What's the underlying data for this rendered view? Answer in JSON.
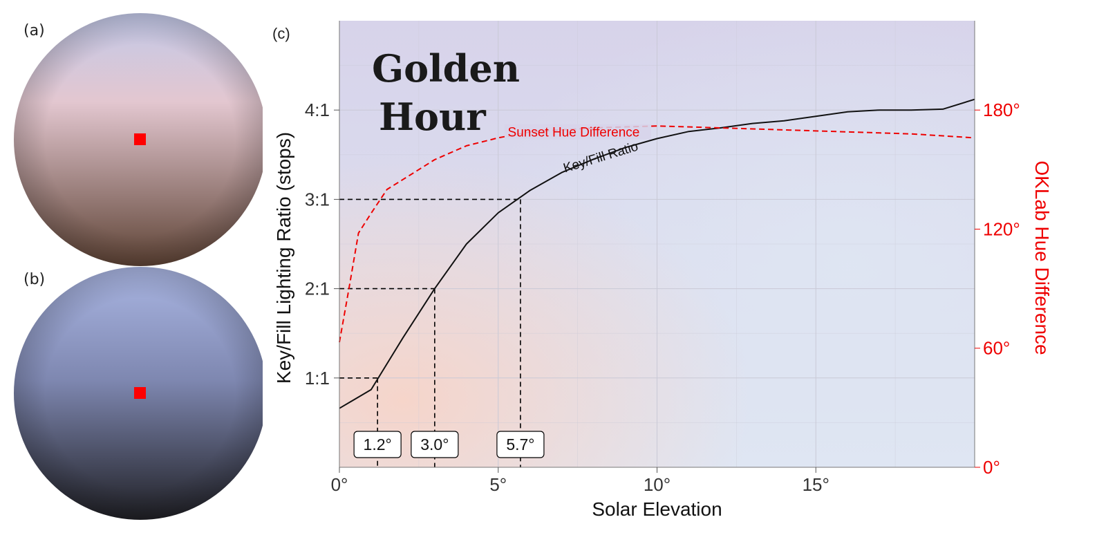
{
  "panels": {
    "a": {
      "label": "(a)"
    },
    "b": {
      "label": "(b)"
    },
    "c": {
      "label": "(c)"
    }
  },
  "spheres": {
    "a": {
      "top_color": "#c2c8e8",
      "mid_color": "#e3c7d0",
      "bottom_color": "#5e4335",
      "rim_color": "#b8a3bd",
      "marker_color": "#ff0000"
    },
    "b": {
      "top_color": "#aab6e3",
      "mid_color": "#7e87b0",
      "bottom_color": "#1f1f24",
      "rim_color": "#9aa3c6",
      "marker_color": "#ff0000"
    }
  },
  "colors": {
    "key_fill_line": "#111111",
    "hue_line": "#ee0000",
    "right_axis": "#ee0000",
    "grid": "#c9c9d6",
    "bg_top": "#d7d3ea",
    "bg_warm": "#f7d4c8",
    "bg_right": "#dfe6f3"
  },
  "chart_data": {
    "type": "line",
    "title": "Golden Hour",
    "title_lines": [
      "Golden",
      "Hour"
    ],
    "xlabel": "Solar Elevation",
    "ylabel": "Key/Fill Lighting Ratio (stops)",
    "y2label": "OKLab Hue Difference",
    "xlim": [
      0,
      20
    ],
    "ylim": [
      0,
      5
    ],
    "y2lim": [
      0,
      225
    ],
    "x_ticks": [
      0,
      5,
      10,
      15
    ],
    "x_tick_labels": [
      "0°",
      "5°",
      "10°",
      "15°"
    ],
    "y_ticks": [
      1,
      2,
      3,
      4
    ],
    "y_tick_labels": [
      "1:1",
      "2:1",
      "3:1",
      "4:1"
    ],
    "y2_ticks": [
      0,
      60,
      120,
      180
    ],
    "y2_tick_labels": [
      "0°",
      "60°",
      "120°",
      "180°"
    ],
    "series": [
      {
        "name": "Key/Fill Ratio",
        "axis": "left",
        "style": "solid",
        "label": "Key/Fill Ratio",
        "x": [
          0,
          1,
          2,
          3,
          4,
          5,
          6,
          7,
          8,
          9,
          10,
          11,
          12,
          13,
          14,
          15,
          16,
          17,
          18,
          19,
          20
        ],
        "y": [
          0.66,
          0.87,
          1.45,
          2.0,
          2.5,
          2.85,
          3.1,
          3.3,
          3.45,
          3.58,
          3.68,
          3.76,
          3.8,
          3.85,
          3.88,
          3.93,
          3.98,
          4.0,
          4.0,
          4.01,
          4.12
        ]
      },
      {
        "name": "Sunset Hue Difference",
        "axis": "right",
        "style": "dashed",
        "label": "Sunset Hue Difference",
        "x": [
          0,
          0.3,
          0.6,
          1,
          1.5,
          2,
          3,
          4,
          5,
          6,
          8,
          10,
          12,
          14,
          16,
          18,
          20
        ],
        "y": [
          63,
          90,
          118,
          128,
          140,
          145,
          155,
          162,
          166,
          169,
          171,
          172,
          171,
          170,
          169,
          168,
          166
        ]
      }
    ],
    "annotations": [
      {
        "x": 1.2,
        "y": 1.0,
        "label": "1.2°"
      },
      {
        "x": 3.0,
        "y": 2.0,
        "label": "3.0°"
      },
      {
        "x": 5.7,
        "y": 3.0,
        "label": "5.7°"
      }
    ]
  }
}
